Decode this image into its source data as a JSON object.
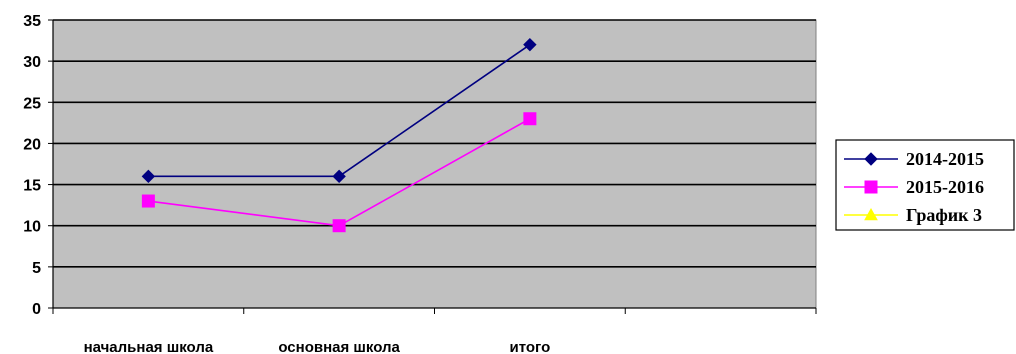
{
  "chart_data": {
    "type": "line",
    "title": "",
    "xlabel": "",
    "ylabel": "",
    "categories": [
      "начальная школа",
      "основная школа",
      "итого",
      ""
    ],
    "ylim": [
      0,
      35
    ],
    "yticks": [
      "0",
      "5",
      "10",
      "15",
      "20",
      "25",
      "30",
      "35"
    ],
    "grid": true,
    "legend_position": "right",
    "plot_background": "#c0c0c0",
    "series": [
      {
        "name": "2014-2015",
        "values": [
          16,
          16,
          32,
          null
        ],
        "color": "#000080",
        "marker": "diamond"
      },
      {
        "name": "2015-2016",
        "values": [
          13,
          10,
          23,
          null
        ],
        "color": "#ff00ff",
        "marker": "square"
      },
      {
        "name": "График 3",
        "values": [
          null,
          null,
          null,
          null
        ],
        "color": "#ffff00",
        "marker": "triangle"
      }
    ]
  }
}
